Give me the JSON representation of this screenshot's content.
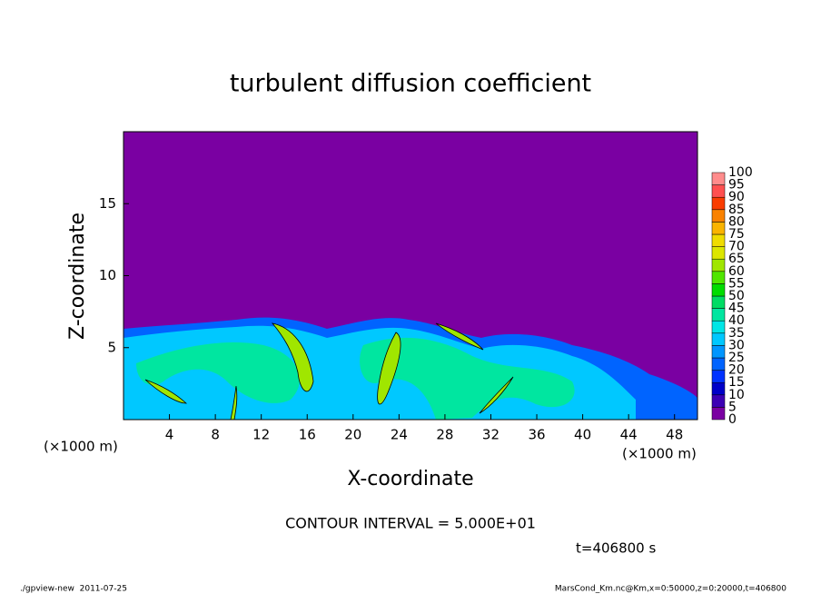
{
  "chart_data": {
    "type": "contour",
    "title": "turbulent diffusion coefficient",
    "x_label": "X-coordinate",
    "y_label": "Z-coordinate",
    "x_unit": "(×1000 m)",
    "y_unit": "(×1000 m)",
    "xlim": [
      0,
      50
    ],
    "ylim": [
      0,
      20
    ],
    "xticks": [
      4,
      8,
      12,
      16,
      20,
      24,
      28,
      32,
      36,
      40,
      44,
      48
    ],
    "yticks": [
      5,
      10,
      15
    ],
    "colorbar": {
      "levels": [
        0,
        5,
        10,
        15,
        20,
        25,
        30,
        35,
        40,
        45,
        50,
        55,
        60,
        65,
        70,
        75,
        80,
        85,
        90,
        95,
        100
      ],
      "colors": [
        "#7a00a2",
        "#3c00b4",
        "#0000c8",
        "#0032ff",
        "#0064ff",
        "#0096ff",
        "#00c8ff",
        "#00e6e6",
        "#00e6a0",
        "#00dc64",
        "#00dc00",
        "#50e600",
        "#a0e600",
        "#dce600",
        "#f0dc00",
        "#fab400",
        "#fa8200",
        "#fa3c00",
        "#ff5050",
        "#ff8c8c"
      ]
    },
    "contour_interval": "CONTOUR INTERVAL = 5.000E+01",
    "time": "t=406800 s"
  },
  "footer": {
    "left": "./gpview-new  2011-07-25",
    "right": "MarsCond_Km.nc@Km,x=0:50000,z=0:20000,t=406800"
  }
}
